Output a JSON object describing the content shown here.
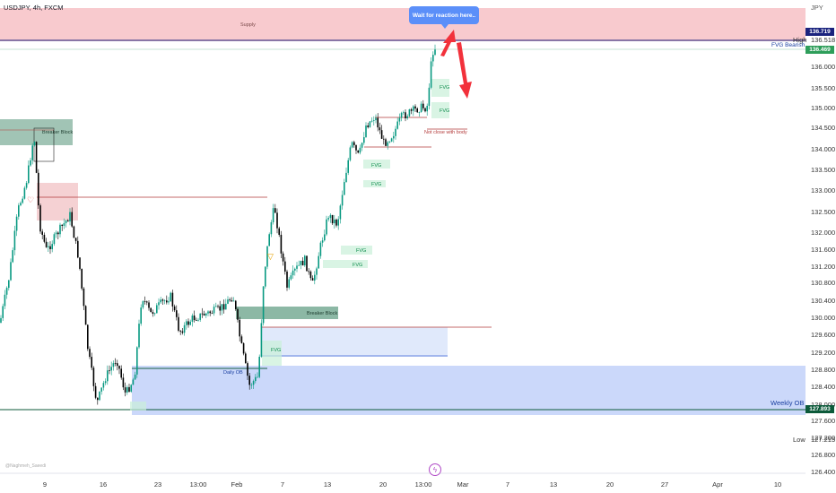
{
  "symbol": {
    "title": "USDJPY, 4h, FXCM",
    "currency": "JPY"
  },
  "callout": {
    "text": "Wait for reaction here.."
  },
  "zones": {
    "supply": "Supply",
    "breaker_block_1": "Breaker Block",
    "breaker_block_2": "Breaker Block",
    "daily_ob": "Daily OB",
    "weekly_ob": "Weekly OB",
    "fvg_bearish": "FVG Bearish",
    "not_close": "Not close with body",
    "fvg": "FVG"
  },
  "price_axis": {
    "labels": [
      "136.000",
      "135.500",
      "135.000",
      "134.500",
      "134.000",
      "133.500",
      "133.000",
      "132.500",
      "132.000",
      "131.600",
      "131.200",
      "130.800",
      "130.400",
      "130.000",
      "129.600",
      "129.200",
      "128.800",
      "128.400",
      "128.000",
      "127.600",
      "127.200",
      "126.800",
      "126.400"
    ],
    "high_label": "High",
    "high_value": "136.518",
    "low_label": "Low",
    "low_value": "127.215",
    "tag_current": "136.719",
    "tag_fvg": "136.469",
    "tag_weekly": "127.893"
  },
  "time_axis": {
    "labels": [
      "9",
      "16",
      "23",
      "13:00",
      "Feb",
      "7",
      "13",
      "20",
      "13:00",
      "Mar",
      "7",
      "13",
      "20",
      "27",
      "Apr",
      "10"
    ]
  },
  "colors": {
    "bull": "#089981",
    "bear": "#000000",
    "supply": "#f5b5bb",
    "weekly_ob": "#b8c9f7",
    "breaker": "#2e7d5b",
    "callout": "#5b8ff9",
    "arrow": "#f2313b",
    "navy": "#1a237e"
  },
  "icons": {
    "flash": "flash-icon"
  },
  "watermark": "@Naghmeh_Saeedi"
}
